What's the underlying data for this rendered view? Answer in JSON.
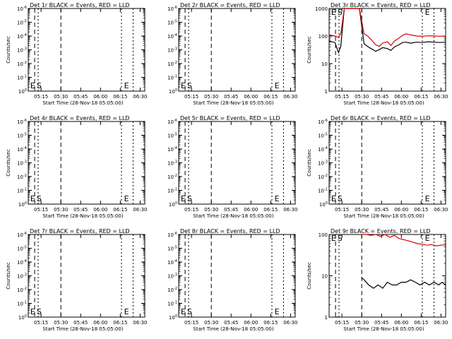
{
  "chart_data": [
    {
      "type": "line",
      "title": "Det 1r BLACK = Events, RED = LLD",
      "xlabel": "Start Time (28-Nov-18 05:05:00)",
      "ylabel": "Counts/sec",
      "x_ticks": [
        "05:15",
        "05:30",
        "05:45",
        "06:00",
        "06:15",
        "06:30"
      ],
      "y_scale": "log",
      "y_ticks": [
        "10^0",
        "10^-1",
        "10^-2",
        "10^-3",
        "10^-4",
        "10^-5",
        "10^-6"
      ],
      "markers": [
        {
          "label": "E"
        },
        {
          "label": "S"
        },
        {
          "label": "E"
        }
      ],
      "series": []
    },
    {
      "type": "line",
      "title": "Det 2r BLACK = Events, RED = LLD",
      "xlabel": "Start Time (28-Nov-18 05:05:00)",
      "ylabel": "",
      "x_ticks": [
        "05:15",
        "05:30",
        "05:45",
        "06:00",
        "06:15",
        "06:30"
      ],
      "y_scale": "log",
      "y_ticks": [
        "10^0",
        "10^-1",
        "10^-2",
        "10^-3",
        "10^-4",
        "10^-5",
        "10^-6"
      ],
      "markers": [
        {
          "label": "E"
        },
        {
          "label": "S"
        },
        {
          "label": "E"
        }
      ],
      "series": []
    },
    {
      "type": "line",
      "title": "Det 3r BLACK = Events, RED = LLD",
      "xlabel": "Start Time (28-Nov-18 05:05:00)",
      "ylabel": "Counts/sec",
      "x_ticks": [
        "05:15",
        "05:30",
        "05:45",
        "06:00",
        "06:15",
        "06:30"
      ],
      "y_scale": "log",
      "y_ticks": [
        "1",
        "10",
        "100",
        "1000"
      ],
      "markers": [
        {
          "label": "E"
        },
        {
          "label": "S"
        },
        {
          "label": "E"
        }
      ],
      "series": [
        {
          "color": "#000000",
          "x": [
            0.0,
            0.05,
            0.08,
            0.1,
            0.13,
            0.16,
            0.18,
            0.2,
            0.22,
            0.24,
            0.26,
            0.3,
            0.33,
            0.36,
            0.4,
            0.43,
            0.46,
            0.5,
            0.53,
            0.56,
            0.6,
            0.63,
            0.66,
            0.7,
            0.75,
            0.8,
            0.85,
            0.9,
            0.95,
            1.0
          ],
          "y": [
            65,
            58,
            25,
            42,
            1000,
            1000,
            1000,
            1000,
            1000,
            1000,
            1000,
            52,
            42,
            35,
            28,
            32,
            38,
            35,
            30,
            40,
            48,
            58,
            60,
            55,
            60,
            58,
            62,
            60,
            58,
            60
          ]
        },
        {
          "color": "#d40000",
          "x": [
            0.0,
            0.05,
            0.08,
            0.1,
            0.13,
            0.16,
            0.18,
            0.2,
            0.22,
            0.24,
            0.26,
            0.3,
            0.33,
            0.36,
            0.4,
            0.43,
            0.46,
            0.5,
            0.53,
            0.56,
            0.6,
            0.63,
            0.66,
            0.7,
            0.75,
            0.8,
            0.85,
            0.9,
            0.95,
            1.0
          ],
          "y": [
            110,
            100,
            90,
            120,
            1000,
            1000,
            1000,
            1000,
            1000,
            1000,
            1000,
            120,
            100,
            75,
            48,
            42,
            55,
            62,
            45,
            65,
            85,
            105,
            120,
            110,
            100,
            98,
            102,
            100,
            98,
            100
          ]
        }
      ]
    },
    {
      "type": "line",
      "title": "Det 4r BLACK = Events, RED = LLD",
      "xlabel": "Start Time (28-Nov-18 05:05:00)",
      "ylabel": "Counts/sec",
      "x_ticks": [
        "05:15",
        "05:30",
        "05:45",
        "06:00",
        "06:15",
        "06:30"
      ],
      "y_scale": "log",
      "y_ticks": [
        "10^0",
        "10^-1",
        "10^-2",
        "10^-3",
        "10^-4",
        "10^-5",
        "10^-6"
      ],
      "markers": [
        {
          "label": "E"
        },
        {
          "label": "S"
        },
        {
          "label": "E"
        }
      ],
      "series": []
    },
    {
      "type": "line",
      "title": "Det 5r BLACK = Events, RED = LLD",
      "xlabel": "Start Time (28-Nov-18 05:05:00)",
      "ylabel": "",
      "x_ticks": [
        "05:15",
        "05:30",
        "05:45",
        "06:00",
        "06:15",
        "06:30"
      ],
      "y_scale": "log",
      "y_ticks": [
        "10^0",
        "10^-1",
        "10^-2",
        "10^-3",
        "10^-4",
        "10^-5",
        "10^-6"
      ],
      "markers": [
        {
          "label": "E"
        },
        {
          "label": "S"
        },
        {
          "label": "E"
        }
      ],
      "series": []
    },
    {
      "type": "line",
      "title": "Det 6r BLACK = Events, RED = LLD",
      "xlabel": "Start Time (28-Nov-18 05:05:00)",
      "ylabel": "Counts/sec",
      "x_ticks": [
        "05:15",
        "05:30",
        "05:45",
        "06:00",
        "06:15",
        "06:30"
      ],
      "y_scale": "log",
      "y_ticks": [
        "10^0",
        "10^-1",
        "10^-2",
        "10^-3",
        "10^-4",
        "10^-5",
        "10^-6"
      ],
      "markers": [
        {
          "label": "E"
        },
        {
          "label": "S"
        },
        {
          "label": "E"
        }
      ],
      "series": []
    },
    {
      "type": "line",
      "title": "Det 7r BLACK = Events, RED = LLD",
      "xlabel": "Start Time (28-Nov-18 05:05:00)",
      "ylabel": "Counts/sec",
      "x_ticks": [
        "05:15",
        "05:30",
        "05:45",
        "06:00",
        "06:15",
        "06:30"
      ],
      "y_scale": "log",
      "y_ticks": [
        "10^0",
        "10^-1",
        "10^-2",
        "10^-3",
        "10^-4",
        "10^-5",
        "10^-6"
      ],
      "markers": [
        {
          "label": "E"
        },
        {
          "label": "S"
        },
        {
          "label": "E"
        }
      ],
      "series": []
    },
    {
      "type": "line",
      "title": "Det 8r BLACK = Events, RED = LLD",
      "xlabel": "Start Time (28-Nov-18 05:05:00)",
      "ylabel": "",
      "x_ticks": [
        "05:15",
        "05:30",
        "05:45",
        "06:00",
        "06:15",
        "06:30"
      ],
      "y_scale": "log",
      "y_ticks": [
        "10^0",
        "10^-1",
        "10^-2",
        "10^-3",
        "10^-4",
        "10^-5",
        "10^-6"
      ],
      "markers": [
        {
          "label": "E"
        },
        {
          "label": "S"
        },
        {
          "label": "E"
        }
      ],
      "series": []
    },
    {
      "type": "line",
      "title": "Det 9r BLACK = Events, RED = LLD",
      "xlabel": "Start Time (28-Nov-18 05:05:00)",
      "ylabel": "Counts/sec",
      "x_ticks": [
        "05:15",
        "05:30",
        "05:45",
        "06:00",
        "06:15",
        "06:30"
      ],
      "y_scale": "log",
      "y_ticks": [
        "1",
        "10",
        "100"
      ],
      "markers": [
        {
          "label": "E"
        },
        {
          "label": "S"
        },
        {
          "label": "E"
        }
      ],
      "series": [
        {
          "color": "#000000",
          "x": [
            0.0,
            0.03,
            0.05,
            0.06,
            0.07,
            0.08,
            0.1,
            0.14,
            0.18,
            0.22,
            0.26,
            0.28,
            0.3,
            0.34,
            0.38,
            0.42,
            0.46,
            0.5,
            0.54,
            0.58,
            0.62,
            0.66,
            0.7,
            0.74,
            0.78,
            0.82,
            0.86,
            0.9,
            0.94,
            0.97,
            1.0
          ],
          "y": [
            null,
            null,
            1,
            1,
            1,
            1,
            null,
            null,
            null,
            null,
            null,
            9,
            8,
            6,
            5,
            6,
            5,
            7,
            6,
            6,
            7,
            7,
            8,
            7,
            6,
            7,
            6,
            7,
            6,
            7,
            6
          ]
        },
        {
          "color": "#d40000",
          "x": [
            0.0,
            0.03,
            0.06,
            0.1,
            0.14,
            0.18,
            0.22,
            0.26,
            0.28,
            0.32,
            0.36,
            0.4,
            0.44,
            0.48,
            0.52,
            0.56,
            0.6,
            0.64,
            0.68,
            0.72,
            0.76,
            0.8,
            0.84,
            0.88,
            0.92,
            0.96,
            1.0
          ],
          "y": [
            null,
            null,
            null,
            null,
            null,
            null,
            null,
            null,
            100,
            105,
            95,
            100,
            90,
            100,
            85,
            95,
            80,
            75,
            70,
            65,
            60,
            58,
            55,
            57,
            53,
            55,
            56
          ]
        }
      ]
    }
  ]
}
